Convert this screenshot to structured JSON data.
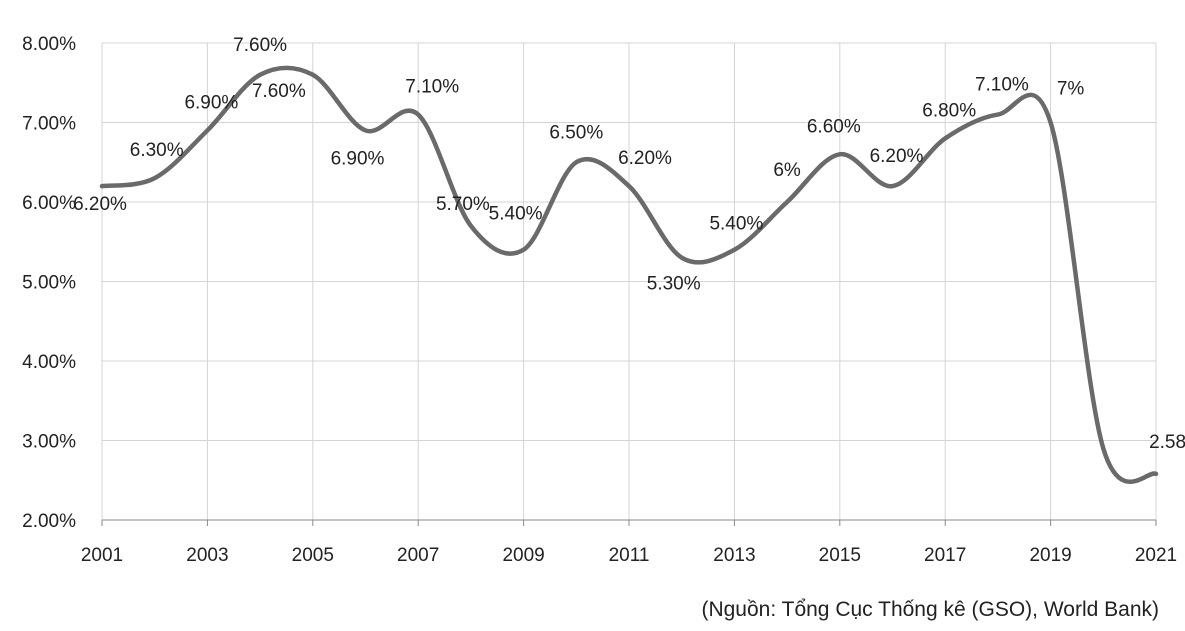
{
  "source_note": "(Nguồn: Tổng Cục Thống kê (GSO), World Bank)",
  "chart_data": {
    "type": "line",
    "title": "",
    "xlabel": "",
    "ylabel": "",
    "x": [
      2001,
      2002,
      2003,
      2004,
      2005,
      2006,
      2007,
      2008,
      2009,
      2010,
      2011,
      2012,
      2013,
      2014,
      2015,
      2016,
      2017,
      2018,
      2019,
      2020,
      2021
    ],
    "values": [
      6.2,
      6.3,
      6.9,
      7.6,
      7.6,
      6.9,
      7.1,
      5.7,
      5.4,
      6.5,
      6.2,
      5.3,
      5.4,
      6.0,
      6.6,
      6.2,
      6.8,
      7.1,
      7.0,
      2.9,
      2.58
    ],
    "data_labels": [
      "6.20%",
      "6.30%",
      "6.90%",
      "7.60%",
      "7.60%",
      "6.90%",
      "7.10%",
      "5.70%",
      "5.40%",
      "6.50%",
      "6.20%",
      "5.30%",
      "5.40%",
      "6%",
      "6.60%",
      "6.20%",
      "6.80%",
      "7.10%",
      "7%",
      "",
      "2.58%"
    ],
    "ylim": [
      2,
      8
    ],
    "yticks": [
      "2.00%",
      "3.00%",
      "4.00%",
      "5.00%",
      "6.00%",
      "7.00%",
      "8.00%"
    ],
    "xticks": [
      "2001",
      "2003",
      "2005",
      "2007",
      "2009",
      "2011",
      "2013",
      "2015",
      "2017",
      "2019",
      "2021"
    ],
    "grid": true,
    "legend": "none",
    "line_color": "#6a6a6a",
    "grid_color": "#d4d4d4"
  }
}
